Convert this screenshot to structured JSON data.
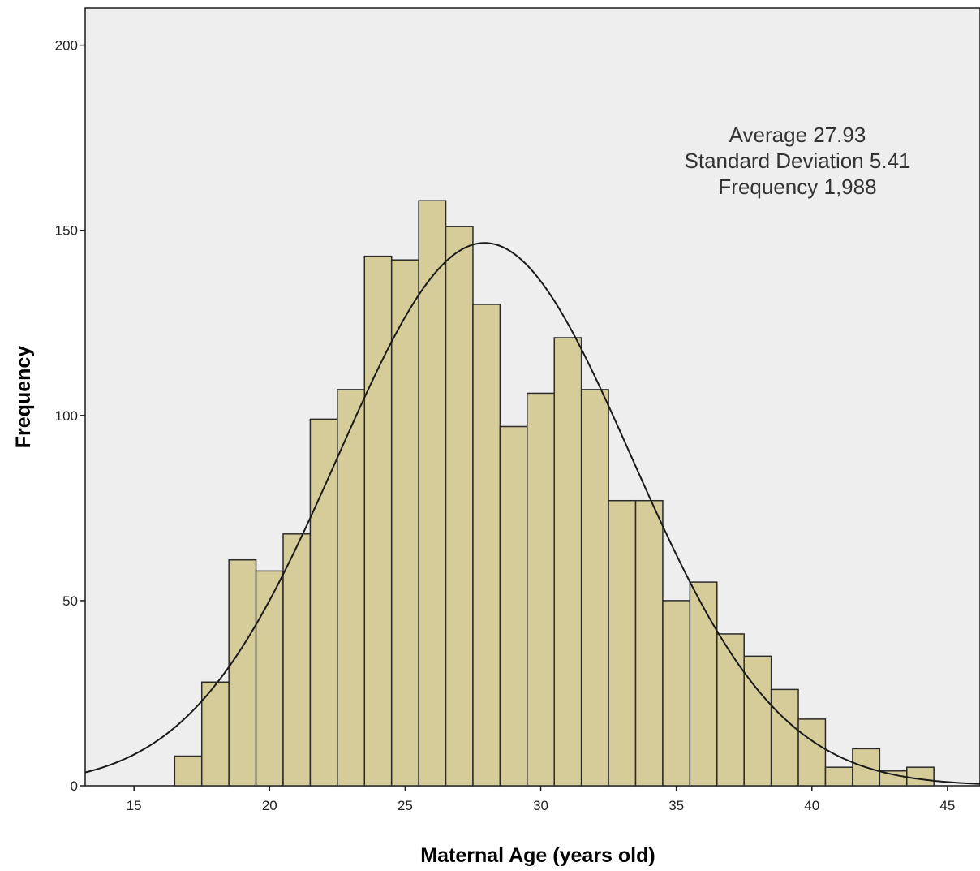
{
  "chart_data": {
    "type": "bar",
    "title": "",
    "xlabel": "Maternal Age (years old)",
    "ylabel": "Frequency",
    "xlim": [
      13.2,
      46.2
    ],
    "ylim": [
      0,
      210
    ],
    "x_ticks": [
      15,
      20,
      25,
      30,
      35,
      40,
      45
    ],
    "y_ticks": [
      0,
      50,
      100,
      150,
      200
    ],
    "bin_width": 1,
    "bin_centers": [
      17,
      18,
      19,
      20,
      21,
      22,
      23,
      24,
      25,
      26,
      27,
      28,
      29,
      30,
      31,
      32,
      33,
      34,
      35,
      36,
      37,
      38,
      39,
      40,
      41,
      42,
      43,
      44
    ],
    "values": [
      8,
      28,
      61,
      58,
      68,
      99,
      107,
      143,
      142,
      158,
      151,
      130,
      97,
      106,
      121,
      107,
      77,
      77,
      50,
      55,
      41,
      35,
      26,
      18,
      5,
      10,
      4,
      5
    ],
    "normal_curve": {
      "mean": 27.93,
      "sd": 5.41,
      "n": 1988,
      "bin_width": 1
    },
    "annotations": [
      "Average 27.93",
      "Standard Deviation 5.41",
      "Frequency 1,988"
    ],
    "colors": {
      "bar_fill": "#d6cc9a",
      "bar_stroke": "#2b2b2b",
      "plot_bg": "#eeeeee",
      "curve": "#1a1a1a"
    },
    "grid": false,
    "legend": "none"
  }
}
